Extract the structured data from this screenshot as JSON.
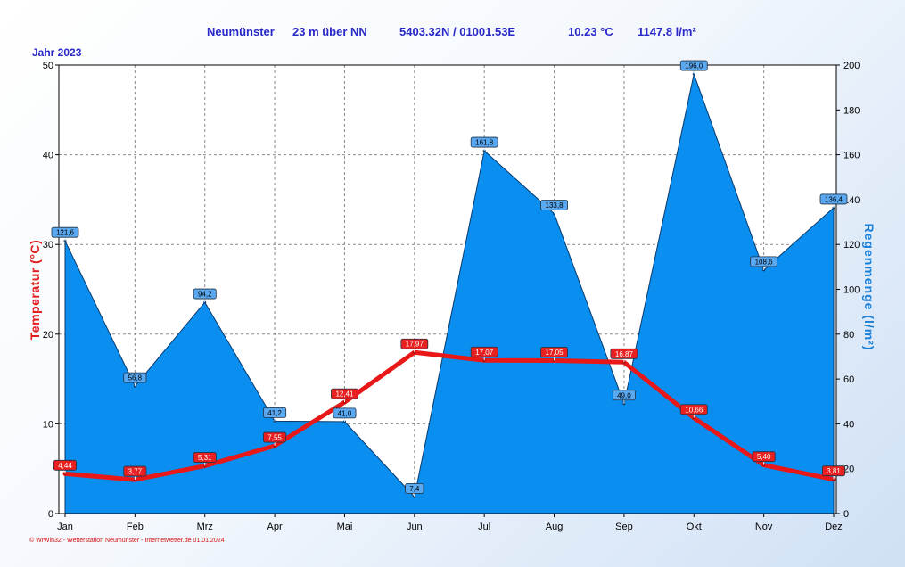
{
  "header": {
    "station": "Neumünster",
    "altitude": "23 m über NN",
    "coords": "5403.32N / 01001.53E",
    "avg_temp": "10.23 °C",
    "total_rain": "1147.8 l/m²"
  },
  "year_label": "Jahr  2023",
  "footer": "© WrWin32 - Wetterstation Neumünster - Internetwetter.de  01.01.2024",
  "colors": {
    "temperature": "#e81818",
    "rain_fill": "#0a8ef0",
    "rain_label_bg": "#5aa8f0",
    "temp_label_bg": "#e82020",
    "title": "#2828c8"
  },
  "chart_data": {
    "type": "area",
    "categories": [
      "Jan",
      "Feb",
      "Mrz",
      "Apr",
      "Mai",
      "Jun",
      "Jul",
      "Aug",
      "Sep",
      "Okt",
      "Nov",
      "Dez"
    ],
    "series": [
      {
        "name": "Regenmenge",
        "axis": "right",
        "type": "area",
        "values": [
          121.6,
          56.8,
          94.2,
          41.2,
          41.0,
          7.4,
          161.8,
          133.8,
          49.0,
          196.0,
          108.6,
          136.4
        ],
        "labels": [
          "121,6",
          "56,8",
          "94,2",
          "41,2",
          "41,0",
          "7,4",
          "161,8",
          "133,8",
          "49,0",
          "196,0",
          "108,6",
          "136,4"
        ]
      },
      {
        "name": "Temperatur",
        "axis": "left",
        "type": "line",
        "values": [
          4.44,
          3.77,
          5.31,
          7.55,
          12.41,
          17.97,
          17.07,
          17.05,
          16.87,
          10.66,
          5.4,
          3.81
        ],
        "labels": [
          "4,44",
          "3,77",
          "5,31",
          "7,55",
          "12,41",
          "17,97",
          "17,07",
          "17,05",
          "16,87",
          "10,66",
          "5,40",
          "3,81"
        ]
      }
    ],
    "ylabel_left": "Temperatur  (°C)",
    "ylabel_right": "Regenmenge  (l/m²)",
    "ylim_left": [
      0,
      50
    ],
    "yticks_left": [
      0,
      10,
      20,
      30,
      40,
      50
    ],
    "ylim_right": [
      0,
      200
    ],
    "yticks_right": [
      0,
      20,
      40,
      60,
      80,
      100,
      120,
      140,
      160,
      180,
      200
    ],
    "grid": true
  }
}
